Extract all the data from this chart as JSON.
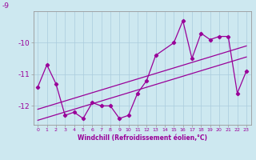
{
  "xlabel": "Windchill (Refroidissement éolien,°C)",
  "x_values": [
    0,
    1,
    2,
    3,
    4,
    5,
    6,
    7,
    8,
    9,
    10,
    11,
    12,
    13,
    15,
    16,
    17,
    18,
    19,
    20,
    21,
    22,
    23
  ],
  "y_values": [
    -11.4,
    -10.7,
    -11.3,
    -12.3,
    -12.2,
    -12.4,
    -11.9,
    -12.0,
    -12.0,
    -12.4,
    -12.3,
    -11.6,
    -11.2,
    -10.4,
    -10.0,
    -9.3,
    -10.5,
    -9.7,
    -9.9,
    -9.8,
    -9.8,
    -11.6,
    -10.9
  ],
  "line_color": "#990099",
  "bg_color": "#cde8f0",
  "grid_color": "#aaccdd",
  "ylim": [
    -12.6,
    -9.0
  ],
  "yticks": [
    -12,
    -11,
    -10
  ],
  "ytick_labels": [
    "-12",
    "-11",
    "-10"
  ],
  "xlim": [
    -0.5,
    23.5
  ],
  "trend1_x": [
    0,
    23
  ],
  "trend1_y": [
    -11.85,
    -10.35
  ],
  "trend2_x": [
    0,
    23
  ],
  "trend2_y": [
    -12.15,
    -10.65
  ]
}
